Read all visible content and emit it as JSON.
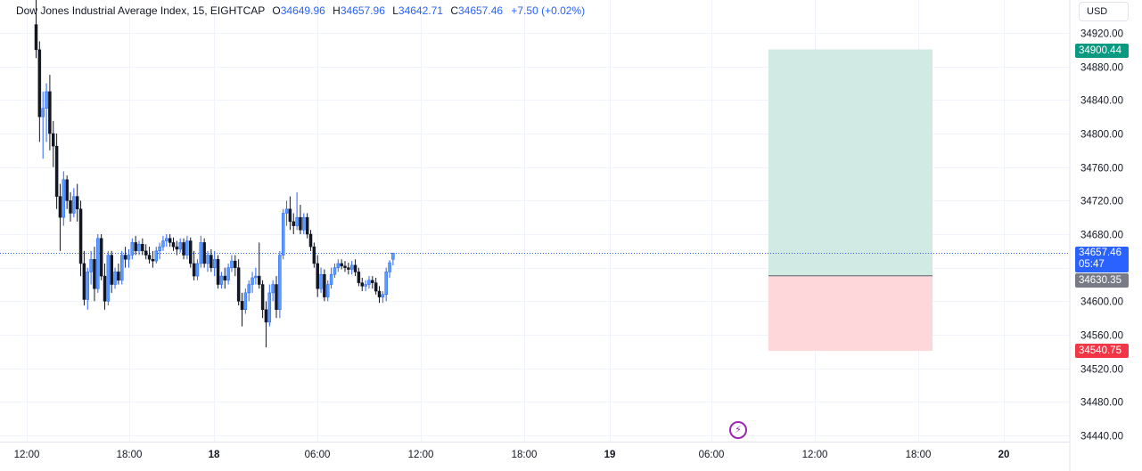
{
  "legend": {
    "symbol": "Dow Jones Industrial Average Index, 15, EIGHTCAP",
    "open_label": "O",
    "open": "34649.96",
    "high_label": "H",
    "high": "34657.96",
    "low_label": "L",
    "low": "34642.71",
    "close_label": "C",
    "close": "34657.46",
    "change": "+7.50 (+0.02%)"
  },
  "currency": "USD",
  "price_tags": {
    "target": "34900.44",
    "last_price": "34657.46",
    "countdown": "05:47",
    "entry": "34630.35",
    "stop": "34540.75"
  },
  "icons": {
    "flash": "lightning-icon"
  },
  "colors": {
    "up": "#2962ff",
    "up_fill": "#5b9cf6",
    "down": "#131722",
    "profit_zone": "#d1ebe4",
    "loss_zone": "#fdd7da",
    "target_tag": "#089981",
    "stop_tag": "#f23645",
    "entry_tag": "#787b86",
    "last_tag": "#2962ff"
  },
  "chart_data": {
    "type": "candlestick",
    "x_ticks": [
      "12:00",
      "18:00",
      "18",
      "06:00",
      "12:00",
      "18:00",
      "19",
      "06:00",
      "12:00",
      "18:00",
      "20"
    ],
    "y_ticks": [
      34440,
      34480,
      34520,
      34560,
      34600,
      34640,
      34680,
      34720,
      34760,
      34800,
      34840,
      34880,
      34920
    ],
    "ylim": [
      34430,
      34950
    ],
    "grid": true,
    "last_price": 34657.46,
    "position": {
      "entry": 34630.35,
      "target": 34900.44,
      "stop": 34540.75
    },
    "candles": [
      [
        34930,
        34960,
        34890,
        34900
      ],
      [
        34900,
        34910,
        34790,
        34820
      ],
      [
        34820,
        34850,
        34770,
        34830
      ],
      [
        34830,
        34860,
        34790,
        34850
      ],
      [
        34850,
        34870,
        34780,
        34800
      ],
      [
        34800,
        34815,
        34760,
        34785
      ],
      [
        34785,
        34800,
        34710,
        34725
      ],
      [
        34725,
        34740,
        34660,
        34700
      ],
      [
        34700,
        34755,
        34690,
        34745
      ],
      [
        34745,
        34750,
        34710,
        34720
      ],
      [
        34720,
        34730,
        34695,
        34705
      ],
      [
        34705,
        34735,
        34700,
        34725
      ],
      [
        34725,
        34740,
        34695,
        34710
      ],
      [
        34710,
        34720,
        34630,
        34645
      ],
      [
        34645,
        34660,
        34595,
        34602
      ],
      [
        34602,
        34640,
        34590,
        34635
      ],
      [
        34635,
        34660,
        34620,
        34650
      ],
      [
        34650,
        34665,
        34600,
        34615
      ],
      [
        34615,
        34680,
        34610,
        34675
      ],
      [
        34675,
        34680,
        34625,
        34630
      ],
      [
        34630,
        34645,
        34590,
        34600
      ],
      [
        34600,
        34660,
        34595,
        34655
      ],
      [
        34655,
        34660,
        34610,
        34620
      ],
      [
        34620,
        34640,
        34615,
        34635
      ],
      [
        34635,
        34645,
        34620,
        34625
      ],
      [
        34625,
        34660,
        34620,
        34655
      ],
      [
        34655,
        34665,
        34640,
        34650
      ],
      [
        34650,
        34662,
        34640,
        34655
      ],
      [
        34655,
        34675,
        34650,
        34670
      ],
      [
        34670,
        34678,
        34655,
        34660
      ],
      [
        34660,
        34672,
        34655,
        34668
      ],
      [
        34668,
        34675,
        34655,
        34660
      ],
      [
        34660,
        34668,
        34650,
        34655
      ],
      [
        34655,
        34665,
        34645,
        34650
      ],
      [
        34650,
        34660,
        34640,
        34648
      ],
      [
        34648,
        34665,
        34645,
        34660
      ],
      [
        34660,
        34670,
        34650,
        34665
      ],
      [
        34665,
        34678,
        34660,
        34672
      ],
      [
        34672,
        34680,
        34665,
        34675
      ],
      [
        34675,
        34680,
        34665,
        34670
      ],
      [
        34670,
        34676,
        34660,
        34665
      ],
      [
        34665,
        34672,
        34655,
        34662
      ],
      [
        34662,
        34675,
        34658,
        34670
      ],
      [
        34670,
        34675,
        34650,
        34655
      ],
      [
        34655,
        34678,
        34650,
        34672
      ],
      [
        34672,
        34676,
        34640,
        34645
      ],
      [
        34645,
        34660,
        34625,
        34630
      ],
      [
        34630,
        34650,
        34625,
        34645
      ],
      [
        34645,
        34678,
        34640,
        34670
      ],
      [
        34670,
        34675,
        34640,
        34645
      ],
      [
        34645,
        34660,
        34635,
        34655
      ],
      [
        34655,
        34662,
        34635,
        34640
      ],
      [
        34640,
        34660,
        34630,
        34650
      ],
      [
        34650,
        34655,
        34615,
        34620
      ],
      [
        34620,
        34635,
        34615,
        34630
      ],
      [
        34630,
        34640,
        34615,
        34625
      ],
      [
        34625,
        34645,
        34620,
        34640
      ],
      [
        34640,
        34655,
        34635,
        34648
      ],
      [
        34648,
        34655,
        34630,
        34640
      ],
      [
        34640,
        34650,
        34595,
        34600
      ],
      [
        34600,
        34610,
        34570,
        34590
      ],
      [
        34590,
        34615,
        34585,
        34610
      ],
      [
        34610,
        34625,
        34600,
        34620
      ],
      [
        34620,
        34635,
        34610,
        34628
      ],
      [
        34628,
        34640,
        34620,
        34630
      ],
      [
        34630,
        34670,
        34615,
        34620
      ],
      [
        34620,
        34625,
        34580,
        34590
      ],
      [
        34590,
        34600,
        34545,
        34575
      ],
      [
        34575,
        34620,
        34570,
        34610
      ],
      [
        34610,
        34625,
        34600,
        34620
      ],
      [
        34620,
        34630,
        34580,
        34590
      ],
      [
        34590,
        34660,
        34580,
        34655
      ],
      [
        34655,
        34710,
        34650,
        34705
      ],
      [
        34705,
        34720,
        34690,
        34710
      ],
      [
        34710,
        34725,
        34685,
        34695
      ],
      [
        34695,
        34705,
        34680,
        34690
      ],
      [
        34690,
        34730,
        34685,
        34700
      ],
      [
        34700,
        34715,
        34680,
        34685
      ],
      [
        34685,
        34705,
        34680,
        34700
      ],
      [
        34700,
        34705,
        34675,
        34680
      ],
      [
        34680,
        34685,
        34660,
        34665
      ],
      [
        34665,
        34670,
        34640,
        34645
      ],
      [
        34645,
        34655,
        34605,
        34615
      ],
      [
        34615,
        34640,
        34610,
        34632
      ],
      [
        34632,
        34638,
        34600,
        34605
      ],
      [
        34605,
        34625,
        34600,
        34620
      ],
      [
        34620,
        34640,
        34615,
        34632
      ],
      [
        34632,
        34645,
        34628,
        34640
      ],
      [
        34640,
        34650,
        34635,
        34645
      ],
      [
        34645,
        34650,
        34638,
        34642
      ],
      [
        34642,
        34648,
        34635,
        34640
      ],
      [
        34640,
        34646,
        34632,
        34638
      ],
      [
        34638,
        34648,
        34632,
        34643
      ],
      [
        34643,
        34650,
        34630,
        34635
      ],
      [
        34635,
        34640,
        34618,
        34622
      ],
      [
        34622,
        34628,
        34612,
        34618
      ],
      [
        34618,
        34625,
        34612,
        34620
      ],
      [
        34620,
        34630,
        34615,
        34625
      ],
      [
        34625,
        34630,
        34615,
        34622
      ],
      [
        34622,
        34628,
        34608,
        34612
      ],
      [
        34612,
        34618,
        34598,
        34605
      ],
      [
        34605,
        34612,
        34598,
        34608
      ],
      [
        34608,
        34640,
        34600,
        34635
      ],
      [
        34635,
        34649,
        34628,
        34646
      ],
      [
        34649.96,
        34657.96,
        34642.71,
        34657.46
      ]
    ]
  }
}
